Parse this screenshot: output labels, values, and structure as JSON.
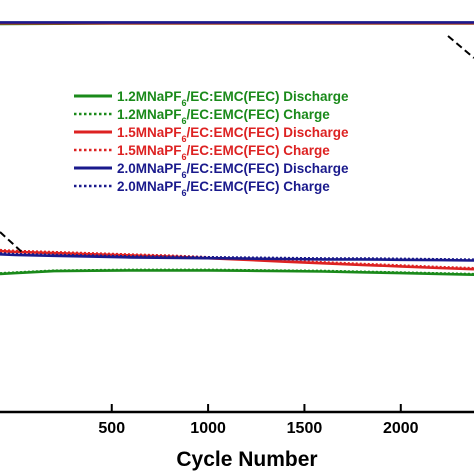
{
  "chart_data": {
    "type": "line",
    "xlabel": "Cycle Number",
    "ylabel": "",
    "title": "",
    "xlim": [
      -80,
      2380
    ],
    "ylim": [
      0,
      105
    ],
    "grid": false,
    "legend_placement": "center-right",
    "x_ticks": [
      500,
      1000,
      1500,
      2000
    ],
    "legend": [
      {
        "label": "1.2MNaPF6/EC:EMC(FEC) Discharge",
        "color": "#1a8a1a",
        "dash": "solid"
      },
      {
        "label": "1.2MNaPF6/EC:EMC(FEC) Charge",
        "color": "#1a8a1a",
        "dash": "dotted"
      },
      {
        "label": "1.5MNaPF6/EC:EMC(FEC) Discharge",
        "color": "#dd2222",
        "dash": "solid"
      },
      {
        "label": "1.5MNaPF6/EC:EMC(FEC) Charge",
        "color": "#dd2222",
        "dash": "dotted"
      },
      {
        "label": "2.0MNaPF6/EC:EMC(FEC) Discharge",
        "color": "#1a1a8c",
        "dash": "solid"
      },
      {
        "label": "2.0MNaPF6/EC:EMC(FEC) Charge",
        "color": "#1a1a8c",
        "dash": "dotted"
      }
    ],
    "series": [
      {
        "name": "1.2MNaPF6/EC:EMC(FEC) Discharge",
        "color": "#1a8a1a",
        "dash": "solid",
        "x": [
          -80,
          0,
          200,
          400,
          600,
          800,
          1000,
          1200,
          1400,
          1600,
          1800,
          2000,
          2200,
          2380
        ],
        "y": [
          35.2,
          35.4,
          35.9,
          36.0,
          36.1,
          36.1,
          36.1,
          36.0,
          35.9,
          35.8,
          35.6,
          35.4,
          35.2,
          35.0
        ]
      },
      {
        "name": "1.2MNaPF6/EC:EMC(FEC) Charge",
        "color": "#1a8a1a",
        "dash": "dotted",
        "x": [
          -80,
          0,
          200,
          400,
          600,
          800,
          1000,
          1200,
          1400,
          1600,
          1800,
          2000,
          2200,
          2380
        ],
        "y": [
          35.4,
          35.6,
          36.1,
          36.2,
          36.3,
          36.3,
          36.3,
          36.2,
          36.1,
          36.0,
          35.8,
          35.6,
          35.4,
          35.2
        ]
      },
      {
        "name": "1.5MNaPF6/EC:EMC(FEC) Discharge",
        "color": "#dd2222",
        "dash": "solid",
        "x": [
          -80,
          0,
          200,
          400,
          600,
          800,
          1000,
          1200,
          1400,
          1600,
          1800,
          2000,
          2200,
          2380
        ],
        "y": [
          41.0,
          40.8,
          40.5,
          40.2,
          39.9,
          39.6,
          39.2,
          38.8,
          38.3,
          37.9,
          37.5,
          37.1,
          36.7,
          36.4
        ]
      },
      {
        "name": "1.5MNaPF6/EC:EMC(FEC) Charge",
        "color": "#dd2222",
        "dash": "dotted",
        "x": [
          -80,
          0,
          200,
          400,
          600,
          800,
          1000,
          1200,
          1400,
          1600,
          1800,
          2000,
          2200,
          2380
        ],
        "y": [
          41.3,
          41.1,
          40.8,
          40.5,
          40.2,
          39.9,
          39.5,
          39.1,
          38.6,
          38.2,
          37.8,
          37.4,
          37.0,
          36.7
        ]
      },
      {
        "name": "2.0MNaPF6/EC:EMC(FEC) Discharge",
        "color": "#1a1a8c",
        "dash": "solid",
        "x": [
          -80,
          0,
          200,
          400,
          600,
          800,
          1000,
          1200,
          1400,
          1600,
          1800,
          2000,
          2200,
          2380
        ],
        "y": [
          40.2,
          40.0,
          39.8,
          39.6,
          39.4,
          39.3,
          39.2,
          39.1,
          39.0,
          38.9,
          38.9,
          38.8,
          38.7,
          38.6
        ]
      },
      {
        "name": "2.0MNaPF6/EC:EMC(FEC) Charge",
        "color": "#1a1a8c",
        "dash": "dotted",
        "x": [
          -80,
          0,
          200,
          400,
          600,
          800,
          1000,
          1200,
          1400,
          1600,
          1800,
          2000,
          2200,
          2380
        ],
        "y": [
          40.5,
          40.3,
          40.1,
          39.9,
          39.7,
          39.6,
          39.5,
          39.4,
          39.3,
          39.2,
          39.2,
          39.1,
          39.0,
          38.9
        ]
      },
      {
        "name": "",
        "color": "#1a8a1a",
        "dash": "solid",
        "x": [
          -80,
          500,
          1000,
          1500,
          2000,
          2380
        ],
        "y": [
          98.9,
          99.0,
          99.0,
          99.0,
          99.0,
          99.0
        ]
      },
      {
        "name": "",
        "color": "#dd2222",
        "dash": "solid",
        "x": [
          -80,
          500,
          1000,
          1500,
          2000,
          2380
        ],
        "y": [
          99.1,
          99.1,
          99.1,
          99.1,
          99.1,
          99.1
        ]
      },
      {
        "name": "",
        "color": "#1a1a8c",
        "dash": "solid",
        "x": [
          -80,
          500,
          1000,
          1500,
          2000,
          2380
        ],
        "y": [
          99.3,
          99.3,
          99.3,
          99.3,
          99.3,
          99.3
        ]
      }
    ]
  }
}
